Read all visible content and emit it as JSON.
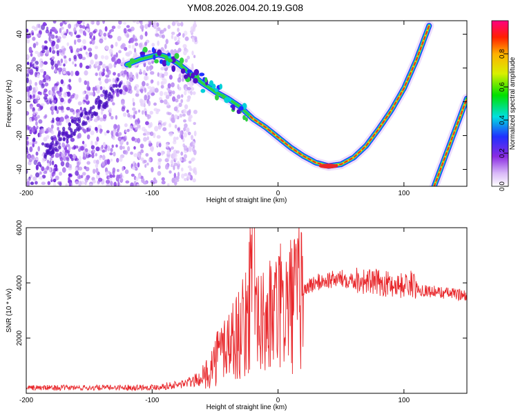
{
  "title": "YM08.2026.004.20.19.G08",
  "colors": {
    "snr_line": "#e8262a",
    "ridge_core": "#e8262a",
    "scatter": "#7a2fe0"
  },
  "chart_data": [
    {
      "type": "heatmap",
      "xlabel": "Height of straight line (km)",
      "ylabel": "Frequency (Hz)",
      "xlim": [
        -200,
        150
      ],
      "ylim": [
        -50,
        48
      ],
      "xticks": [
        -200,
        -100,
        0,
        100
      ],
      "yticks": [
        -40,
        -20,
        0,
        20,
        40
      ],
      "colorbar": {
        "label": "Normalized spectral amplitude",
        "range": [
          0,
          1
        ],
        "ticks": [
          0.0,
          0.2,
          0.4,
          0.6,
          0.8
        ],
        "colormap": "rainbow"
      },
      "ridges": [
        {
          "name": "",
          "x": [
            -120,
            -110,
            -100,
            -95,
            -90,
            -80,
            -70,
            -60,
            -50,
            -40,
            -30,
            -20,
            -10,
            0,
            10,
            20,
            30,
            40,
            50,
            60,
            70,
            80,
            90,
            100,
            110,
            120
          ],
          "y": [
            22,
            25,
            27,
            28,
            27,
            23,
            17,
            11,
            6,
            2,
            -3,
            -10,
            -15,
            -21,
            -27,
            -32,
            -36,
            -38,
            -37,
            -33,
            -26,
            -16,
            -5,
            8,
            25,
            45
          ]
        },
        {
          "name": "",
          "x": [
            124,
            130,
            140,
            150
          ],
          "y": [
            -50,
            -38,
            -18,
            2
          ]
        }
      ]
    },
    {
      "type": "line",
      "xlabel": "Height of straight line (km)",
      "ylabel": "SNR (10 * v/v)",
      "xlim": [
        -200,
        150
      ],
      "ylim": [
        0,
        6000
      ],
      "xticks": [
        -200,
        -100,
        0,
        100
      ],
      "yticks": [
        2000,
        4000,
        6000
      ],
      "series": [
        {
          "name": "",
          "x": [
            -200,
            -150,
            -100,
            -80,
            -70,
            -60,
            -55,
            -50,
            -45,
            -40,
            -35,
            -30,
            -25,
            -22,
            -20,
            -18,
            -15,
            -10,
            -5,
            0,
            5,
            10,
            15,
            20,
            25,
            30,
            40,
            50,
            60,
            70,
            80,
            90,
            100,
            105,
            110,
            120,
            130,
            140,
            150
          ],
          "y": [
            200,
            200,
            220,
            300,
            400,
            550,
            800,
            1200,
            1600,
            1800,
            2000,
            2200,
            2500,
            3800,
            5200,
            2600,
            2400,
            2600,
            2800,
            3000,
            3100,
            3200,
            3400,
            3700,
            3900,
            4000,
            4100,
            4150,
            4150,
            4050,
            4000,
            3950,
            3900,
            4000,
            3800,
            3700,
            3650,
            3600,
            3550
          ]
        }
      ]
    }
  ]
}
